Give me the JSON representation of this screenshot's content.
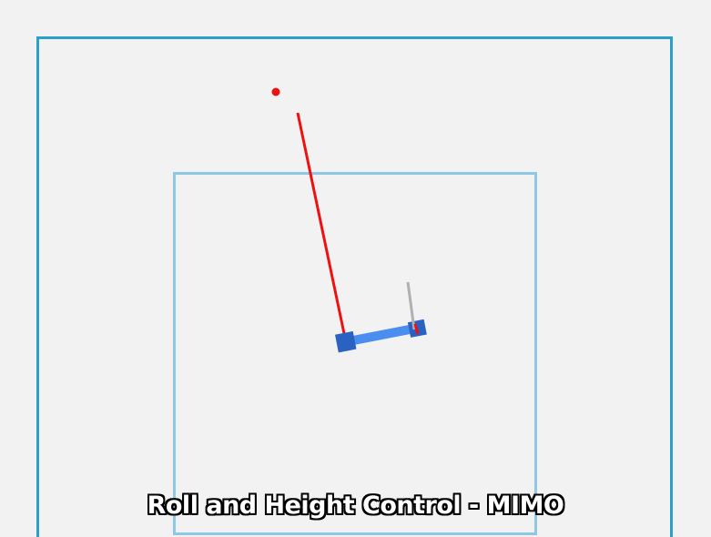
{
  "scene": {
    "background_color": "#f2f2f2",
    "outer_boundary_color": "#2aa0c8",
    "inner_boundary_color": "#8ec8e4",
    "target_color": "#ee1111",
    "thrust_vector_color": "#ee1111",
    "reference_vector_color": "#b0b0b0",
    "drone_arm_color": "#4a8ef0",
    "drone_motor_color": "#2a62c2"
  },
  "caption": {
    "text": "Roll and Height Control - MIMO"
  }
}
